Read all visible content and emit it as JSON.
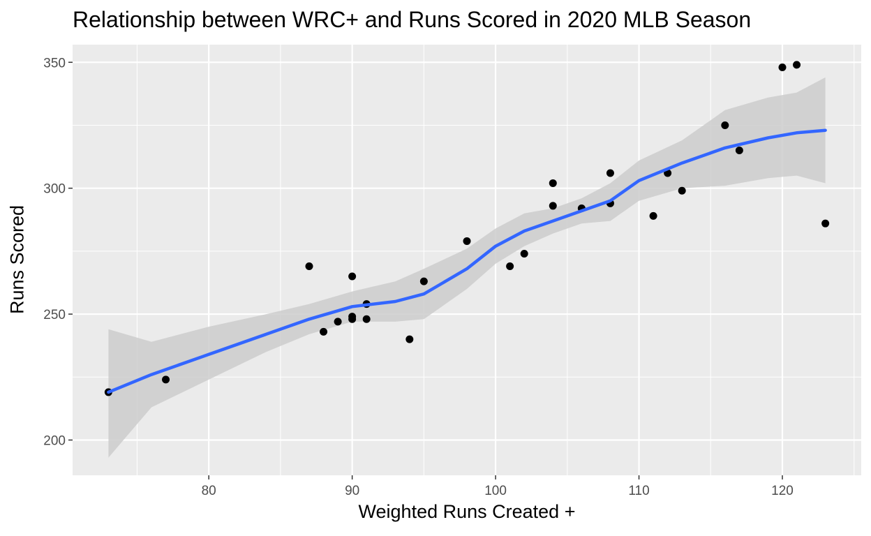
{
  "chart_data": {
    "type": "scatter",
    "title": "Relationship between WRC+ and Runs Scored in 2020 MLB Season",
    "xlabel": "Weighted Runs Created +",
    "ylabel": "Runs Scored",
    "xlim": [
      70.5,
      125.5
    ],
    "ylim": [
      186,
      357
    ],
    "x_ticks": [
      80,
      90,
      100,
      110,
      120
    ],
    "y_ticks": [
      200,
      250,
      300,
      350
    ],
    "grid": true,
    "background": "#ebebeb",
    "point_color": "#000000",
    "line_color": "#3366ff",
    "band_color": "#cccccc",
    "points": [
      {
        "x": 73,
        "y": 219
      },
      {
        "x": 77,
        "y": 224
      },
      {
        "x": 87,
        "y": 269
      },
      {
        "x": 88,
        "y": 243
      },
      {
        "x": 89,
        "y": 247
      },
      {
        "x": 90,
        "y": 265
      },
      {
        "x": 90,
        "y": 249
      },
      {
        "x": 90,
        "y": 248
      },
      {
        "x": 91,
        "y": 254
      },
      {
        "x": 91,
        "y": 248
      },
      {
        "x": 94,
        "y": 240
      },
      {
        "x": 95,
        "y": 263
      },
      {
        "x": 98,
        "y": 279
      },
      {
        "x": 101,
        "y": 269
      },
      {
        "x": 102,
        "y": 274
      },
      {
        "x": 104,
        "y": 302
      },
      {
        "x": 104,
        "y": 293
      },
      {
        "x": 106,
        "y": 292
      },
      {
        "x": 108,
        "y": 306
      },
      {
        "x": 108,
        "y": 294
      },
      {
        "x": 111,
        "y": 289
      },
      {
        "x": 112,
        "y": 306
      },
      {
        "x": 113,
        "y": 299
      },
      {
        "x": 116,
        "y": 325
      },
      {
        "x": 117,
        "y": 315
      },
      {
        "x": 120,
        "y": 348
      },
      {
        "x": 121,
        "y": 349
      },
      {
        "x": 123,
        "y": 286
      }
    ],
    "smooth": {
      "x": [
        73,
        76,
        80,
        84,
        87,
        90,
        93,
        95,
        98,
        100,
        102,
        104,
        106,
        108,
        110,
        113,
        116,
        119,
        121,
        123
      ],
      "y": [
        219,
        226,
        234,
        242,
        248,
        253,
        255,
        258,
        268,
        277,
        283,
        287,
        291,
        295,
        303,
        310,
        316,
        320,
        322,
        323
      ],
      "lower": [
        193,
        213,
        224,
        235,
        242,
        247,
        247,
        248,
        260,
        270,
        277,
        282,
        286,
        287,
        295,
        300,
        301,
        304,
        305,
        302
      ],
      "upper": [
        244,
        239,
        245,
        250,
        254,
        259,
        263,
        268,
        276,
        284,
        290,
        292,
        296,
        302,
        311,
        319,
        331,
        336,
        338,
        344
      ]
    }
  }
}
